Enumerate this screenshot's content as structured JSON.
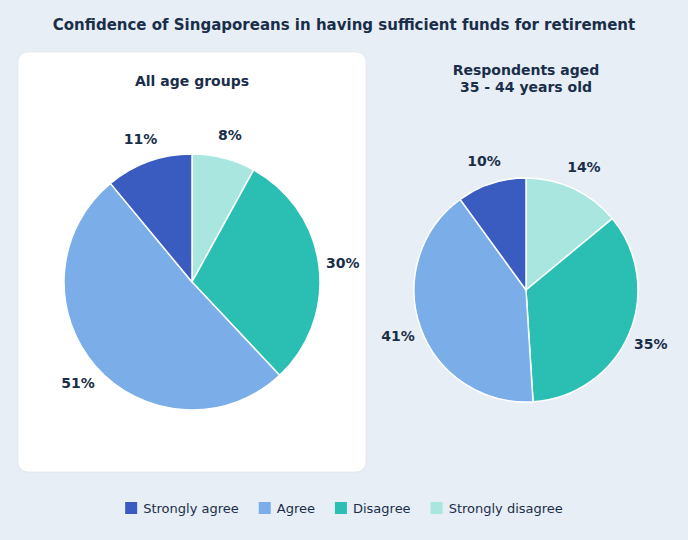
{
  "title": "Confidence of Singaporeans in having sufficient funds for retirement",
  "chart_data": [
    {
      "type": "pie",
      "title": "All age groups",
      "categories": [
        "Strongly disagree",
        "Disagree",
        "Agree",
        "Strongly agree"
      ],
      "values": [
        8,
        30,
        51,
        11
      ],
      "value_labels": [
        "8%",
        "30%",
        "51%",
        "11%"
      ],
      "colors": [
        "#a8e6df",
        "#2bbfb3",
        "#7baee8",
        "#3a5bbf"
      ],
      "data_labels": true,
      "legend": "bottom"
    },
    {
      "type": "pie",
      "title": "Respondents aged\n35 - 44 years old",
      "categories": [
        "Strongly disagree",
        "Disagree",
        "Agree",
        "Strongly agree"
      ],
      "values": [
        14,
        35,
        41,
        10
      ],
      "value_labels": [
        "14%",
        "35%",
        "41%",
        "10%"
      ],
      "colors": [
        "#a8e6df",
        "#2bbfb3",
        "#7baee8",
        "#3a5bbf"
      ],
      "data_labels": true
    }
  ]
}
